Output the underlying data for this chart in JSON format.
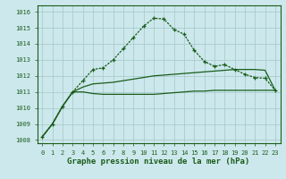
{
  "bg_color": "#cce8ec",
  "grid_color": "#b0d8dc",
  "line_color": "#1a5c1a",
  "x_values": [
    0,
    1,
    2,
    3,
    4,
    5,
    6,
    7,
    8,
    9,
    10,
    11,
    12,
    13,
    14,
    15,
    16,
    17,
    18,
    19,
    20,
    21,
    22,
    23
  ],
  "y_main": [
    1008.2,
    1009.0,
    1010.1,
    1011.0,
    1011.7,
    1012.4,
    1012.5,
    1013.0,
    1013.7,
    1014.4,
    1015.1,
    1015.6,
    1015.55,
    1014.9,
    1014.6,
    1013.6,
    1012.9,
    1012.6,
    1012.7,
    1012.4,
    1012.1,
    1011.9,
    1011.85,
    1011.1
  ],
  "y_low": [
    1008.2,
    1009.0,
    1010.1,
    1011.0,
    1011.0,
    1010.9,
    1010.85,
    1010.85,
    1010.85,
    1010.85,
    1010.85,
    1010.85,
    1010.9,
    1010.95,
    1011.0,
    1011.05,
    1011.05,
    1011.1,
    1011.1,
    1011.1,
    1011.1,
    1011.1,
    1011.1,
    1011.1
  ],
  "y_high": [
    1008.2,
    1009.0,
    1010.1,
    1011.0,
    1011.3,
    1011.5,
    1011.55,
    1011.6,
    1011.7,
    1011.8,
    1011.9,
    1012.0,
    1012.05,
    1012.1,
    1012.15,
    1012.2,
    1012.25,
    1012.3,
    1012.35,
    1012.4,
    1012.4,
    1012.4,
    1012.35,
    1011.1
  ],
  "ylim": [
    1007.8,
    1016.4
  ],
  "yticks": [
    1008,
    1009,
    1010,
    1011,
    1012,
    1013,
    1014,
    1015,
    1016
  ],
  "xlim": [
    -0.5,
    23.5
  ],
  "xticks": [
    0,
    1,
    2,
    3,
    4,
    5,
    6,
    7,
    8,
    9,
    10,
    11,
    12,
    13,
    14,
    15,
    16,
    17,
    18,
    19,
    20,
    21,
    22,
    23
  ],
  "xlabel": "Graphe pression niveau de la mer (hPa)",
  "tick_fontsize": 5.0,
  "label_fontsize": 6.5
}
